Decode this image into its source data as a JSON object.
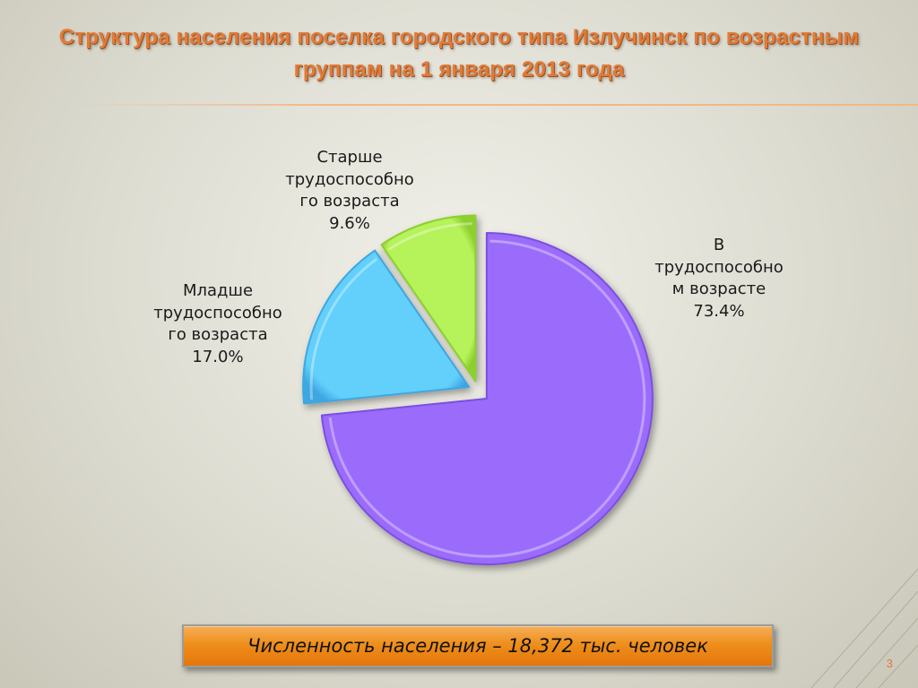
{
  "slide": {
    "title": "Структура населения поселка городского типа Излучинск по возрастным группам на 1 января 2013 года",
    "total_text": "Численность населения – 18,372 тыс. человек",
    "page_number": "3"
  },
  "chart_data": {
    "type": "pie",
    "title": "",
    "categories": [
      "В трудоспособном возрасте",
      "Младше трудоспособного возраста",
      "Старше трудоспособного возраста"
    ],
    "values": [
      73.4,
      17.0,
      9.6
    ],
    "unit": "%",
    "value_labels": [
      "73.4%",
      "17.0%",
      "9.6%"
    ],
    "label_lines": [
      [
        "В",
        "трудоспособно",
        "м возрасте"
      ],
      [
        "Младше",
        "трудоспособно",
        "го возраста"
      ],
      [
        "Старше",
        "трудоспособно",
        "го возраста"
      ]
    ],
    "colors": [
      "#9b6cfb",
      "#62d0fb",
      "#b6f25a"
    ],
    "edge_colors": [
      "#7a4fe0",
      "#3ea7e2",
      "#8ccf2e"
    ],
    "exploded": true,
    "legend": "none"
  }
}
